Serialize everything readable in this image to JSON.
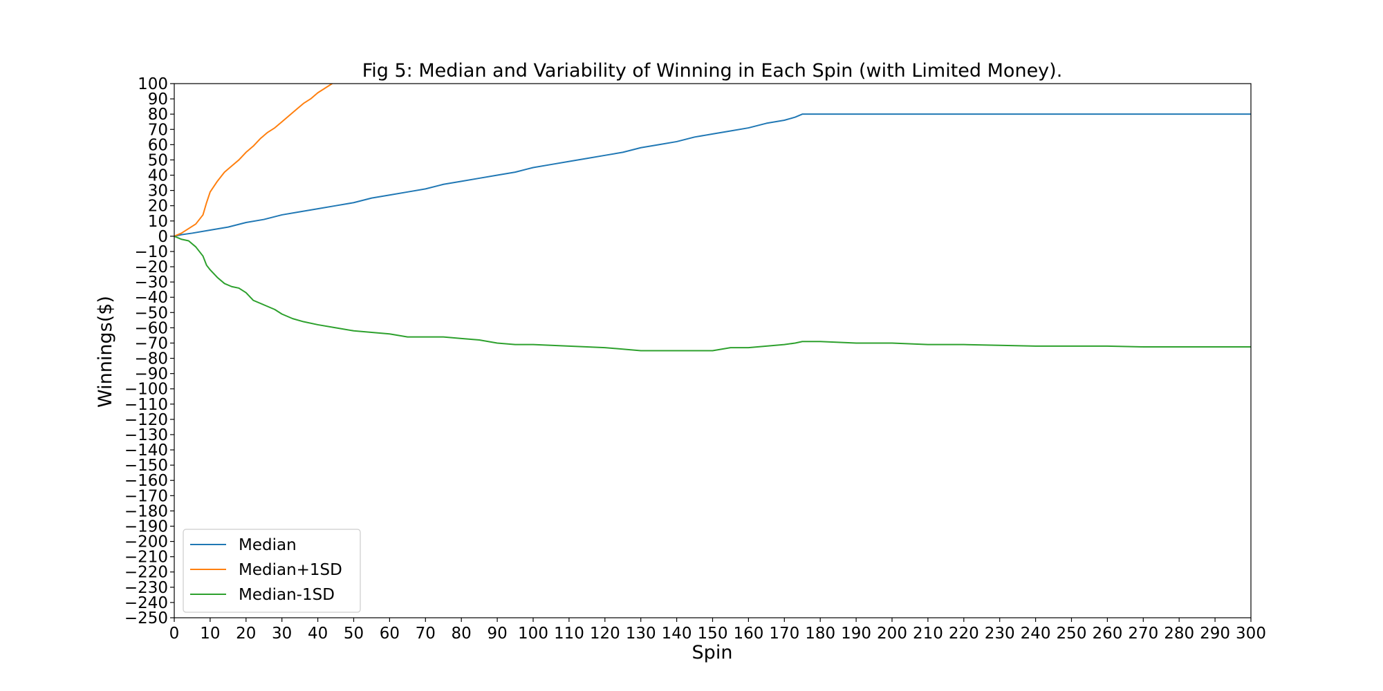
{
  "chart_data": {
    "type": "line",
    "title": "Fig 5: Median and Variability of Winning in Each Spin (with Limited Money).",
    "xlabel": "Spin",
    "ylabel": "Winnings($)",
    "xlim": [
      0,
      300
    ],
    "ylim": [
      -250,
      100
    ],
    "xticks": [
      0,
      10,
      20,
      30,
      40,
      50,
      60,
      70,
      80,
      90,
      100,
      110,
      120,
      130,
      140,
      150,
      160,
      170,
      180,
      190,
      200,
      210,
      220,
      230,
      240,
      250,
      260,
      270,
      280,
      290,
      300
    ],
    "yticks": [
      100,
      90,
      80,
      70,
      60,
      50,
      40,
      30,
      20,
      10,
      0,
      -10,
      -20,
      -30,
      -40,
      -50,
      -60,
      -70,
      -80,
      -90,
      -100,
      -110,
      -120,
      -130,
      -140,
      -150,
      -160,
      -170,
      -180,
      -190,
      -200,
      -210,
      -220,
      -230,
      -240,
      -250
    ],
    "grid": false,
    "legend_position": "lower-left",
    "series": [
      {
        "name": "Median",
        "color": "#1f77b4",
        "points": [
          [
            0,
            0
          ],
          [
            2,
            1
          ],
          [
            5,
            2
          ],
          [
            10,
            4
          ],
          [
            15,
            6
          ],
          [
            20,
            9
          ],
          [
            25,
            11
          ],
          [
            30,
            14
          ],
          [
            35,
            16
          ],
          [
            40,
            18
          ],
          [
            45,
            20
          ],
          [
            50,
            22
          ],
          [
            55,
            25
          ],
          [
            60,
            27
          ],
          [
            65,
            29
          ],
          [
            70,
            31
          ],
          [
            75,
            34
          ],
          [
            80,
            36
          ],
          [
            85,
            38
          ],
          [
            90,
            40
          ],
          [
            95,
            42
          ],
          [
            100,
            45
          ],
          [
            105,
            47
          ],
          [
            110,
            49
          ],
          [
            115,
            51
          ],
          [
            120,
            53
          ],
          [
            125,
            55
          ],
          [
            130,
            58
          ],
          [
            135,
            60
          ],
          [
            140,
            62
          ],
          [
            145,
            65
          ],
          [
            150,
            67
          ],
          [
            155,
            69
          ],
          [
            160,
            71
          ],
          [
            165,
            74
          ],
          [
            170,
            76
          ],
          [
            173,
            78
          ],
          [
            175,
            80
          ],
          [
            180,
            80
          ],
          [
            300,
            80
          ]
        ]
      },
      {
        "name": "Median+1SD",
        "color": "#ff7f0e",
        "points": [
          [
            0,
            0
          ],
          [
            2,
            2
          ],
          [
            4,
            5
          ],
          [
            6,
            8
          ],
          [
            8,
            14
          ],
          [
            9,
            22
          ],
          [
            10,
            29
          ],
          [
            12,
            36
          ],
          [
            14,
            42
          ],
          [
            16,
            46
          ],
          [
            18,
            50
          ],
          [
            20,
            55
          ],
          [
            22,
            59
          ],
          [
            24,
            64
          ],
          [
            26,
            68
          ],
          [
            28,
            71
          ],
          [
            30,
            75
          ],
          [
            32,
            79
          ],
          [
            34,
            83
          ],
          [
            36,
            87
          ],
          [
            38,
            90
          ],
          [
            40,
            94
          ],
          [
            42,
            97
          ],
          [
            44,
            100
          ]
        ]
      },
      {
        "name": "Median-1SD",
        "color": "#2ca02c",
        "points": [
          [
            0,
            0
          ],
          [
            2,
            -2
          ],
          [
            4,
            -3
          ],
          [
            6,
            -7
          ],
          [
            8,
            -13
          ],
          [
            9,
            -19
          ],
          [
            10,
            -22
          ],
          [
            12,
            -27
          ],
          [
            14,
            -31
          ],
          [
            16,
            -33
          ],
          [
            18,
            -34
          ],
          [
            20,
            -37
          ],
          [
            22,
            -42
          ],
          [
            25,
            -45
          ],
          [
            28,
            -48
          ],
          [
            30,
            -51
          ],
          [
            33,
            -54
          ],
          [
            36,
            -56
          ],
          [
            40,
            -58
          ],
          [
            45,
            -60
          ],
          [
            50,
            -62
          ],
          [
            55,
            -63
          ],
          [
            60,
            -64
          ],
          [
            65,
            -66
          ],
          [
            70,
            -66
          ],
          [
            75,
            -66
          ],
          [
            80,
            -67
          ],
          [
            85,
            -68
          ],
          [
            90,
            -70
          ],
          [
            95,
            -71
          ],
          [
            100,
            -71
          ],
          [
            110,
            -72
          ],
          [
            120,
            -73
          ],
          [
            130,
            -75
          ],
          [
            135,
            -75
          ],
          [
            140,
            -75
          ],
          [
            150,
            -75
          ],
          [
            155,
            -73
          ],
          [
            160,
            -73
          ],
          [
            165,
            -72
          ],
          [
            170,
            -71
          ],
          [
            173,
            -70
          ],
          [
            175,
            -69
          ],
          [
            180,
            -69
          ],
          [
            190,
            -70
          ],
          [
            200,
            -70
          ],
          [
            210,
            -71
          ],
          [
            220,
            -71
          ],
          [
            230,
            -71.5
          ],
          [
            240,
            -72
          ],
          [
            250,
            -72
          ],
          [
            260,
            -72
          ],
          [
            270,
            -72.5
          ],
          [
            280,
            -72.5
          ],
          [
            290,
            -72.5
          ],
          [
            300,
            -72.5
          ]
        ]
      }
    ]
  }
}
